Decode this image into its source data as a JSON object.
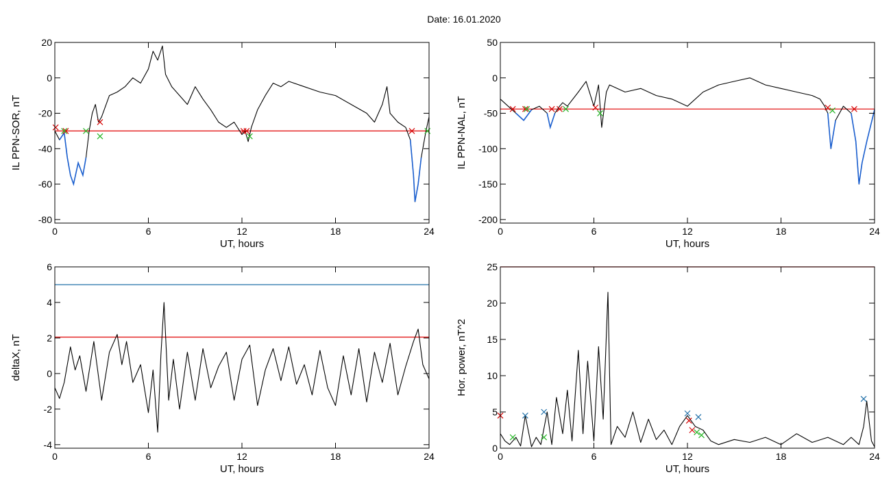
{
  "figure": {
    "title": "Date:  16.01.2020"
  },
  "chart_data": [
    {
      "type": "line",
      "xlabel": "UT, hours",
      "ylabel": "IL PPN-SOR, nT",
      "xlim": [
        0,
        24
      ],
      "ylim": [
        -82,
        20
      ],
      "xticks": [
        0,
        6,
        12,
        18,
        24
      ],
      "yticks": [
        -80,
        -60,
        -40,
        -20,
        0,
        20
      ],
      "threshold": {
        "value": -30,
        "color": "#e00000"
      },
      "x": [
        0,
        0.3,
        0.6,
        0.8,
        1.0,
        1.2,
        1.5,
        1.8,
        2.0,
        2.2,
        2.4,
        2.6,
        2.8,
        3.0,
        3.5,
        4.0,
        4.5,
        5.0,
        5.5,
        6.0,
        6.3,
        6.6,
        6.9,
        7.1,
        7.5,
        8.0,
        8.5,
        9.0,
        9.5,
        10.0,
        10.5,
        11.0,
        11.5,
        12.0,
        12.2,
        12.4,
        12.6,
        13.0,
        13.5,
        14.0,
        14.5,
        15.0,
        16.0,
        17.0,
        18.0,
        19.0,
        20.0,
        20.5,
        21.0,
        21.3,
        21.5,
        22.0,
        22.5,
        22.8,
        23.0,
        23.1,
        23.3,
        23.5,
        23.8,
        24.0
      ],
      "y": [
        -30,
        -35,
        -31,
        -45,
        -55,
        -60,
        -48,
        -55,
        -45,
        -30,
        -20,
        -15,
        -25,
        -22,
        -10,
        -8,
        -5,
        0,
        -3,
        5,
        15,
        10,
        18,
        2,
        -5,
        -10,
        -15,
        -5,
        -12,
        -18,
        -25,
        -28,
        -25,
        -32,
        -30,
        -36,
        -28,
        -18,
        -10,
        -3,
        -5,
        -2,
        -5,
        -8,
        -10,
        -15,
        -20,
        -25,
        -15,
        -5,
        -20,
        -25,
        -28,
        -35,
        -55,
        -70,
        -60,
        -45,
        -30,
        -22
      ],
      "markers_red": [
        [
          0.05,
          -28
        ],
        [
          0.7,
          -30
        ],
        [
          2.9,
          -25
        ],
        [
          12.1,
          -30
        ],
        [
          12.3,
          -30
        ],
        [
          22.9,
          -30
        ]
      ],
      "markers_green": [
        [
          0.6,
          -30
        ],
        [
          2.0,
          -30
        ],
        [
          2.9,
          -33
        ],
        [
          12.5,
          -33
        ],
        [
          23.9,
          -30
        ]
      ]
    },
    {
      "type": "line",
      "xlabel": "UT, hours",
      "ylabel": "IL PPN-NAL, nT",
      "xlim": [
        0,
        24
      ],
      "ylim": [
        -205,
        50
      ],
      "xticks": [
        0,
        6,
        12,
        18,
        24
      ],
      "yticks": [
        -200,
        -150,
        -100,
        -50,
        0,
        50
      ],
      "threshold": {
        "value": -44,
        "color": "#e00000"
      },
      "x": [
        0,
        0.5,
        1.0,
        1.5,
        2.0,
        2.5,
        3.0,
        3.2,
        3.5,
        3.8,
        4.0,
        4.3,
        5.0,
        5.5,
        6.0,
        6.3,
        6.5,
        6.8,
        7.0,
        8.0,
        9.0,
        10.0,
        11.0,
        12.0,
        13.0,
        14.0,
        15.0,
        16.0,
        17.0,
        18.0,
        19.0,
        20.0,
        20.5,
        20.8,
        21.0,
        21.2,
        21.5,
        22.0,
        22.5,
        22.8,
        23.0,
        23.2,
        23.5,
        24.0
      ],
      "y": [
        -30,
        -40,
        -50,
        -60,
        -45,
        -40,
        -50,
        -70,
        -50,
        -40,
        -35,
        -40,
        -20,
        -5,
        -40,
        -10,
        -70,
        -20,
        -10,
        -20,
        -15,
        -25,
        -30,
        -40,
        -20,
        -10,
        -5,
        0,
        -10,
        -15,
        -20,
        -25,
        -30,
        -40,
        -50,
        -100,
        -60,
        -40,
        -50,
        -90,
        -150,
        -120,
        -90,
        -45
      ],
      "markers_red": [
        [
          0.8,
          -44
        ],
        [
          1.6,
          -44
        ],
        [
          3.3,
          -44
        ],
        [
          3.8,
          -44
        ],
        [
          6.1,
          -42
        ],
        [
          21.0,
          -42
        ],
        [
          22.7,
          -44
        ]
      ],
      "markers_green": [
        [
          1.7,
          -44
        ],
        [
          4.2,
          -44
        ],
        [
          6.4,
          -50
        ],
        [
          21.3,
          -46
        ]
      ]
    },
    {
      "type": "line",
      "xlabel": "UT, hours",
      "ylabel": "deltaX, nT",
      "xlim": [
        0,
        24
      ],
      "ylim": [
        -4.2,
        6
      ],
      "xticks": [
        0,
        6,
        12,
        18,
        24
      ],
      "yticks": [
        -4,
        -2,
        0,
        2,
        4,
        6
      ],
      "threshold": {
        "value": 2.05,
        "color": "#e00000"
      },
      "threshold2": {
        "value": 5.0,
        "color": "#1f6fa8"
      },
      "x": [
        0,
        0.3,
        0.6,
        1.0,
        1.3,
        1.6,
        2.0,
        2.5,
        3.0,
        3.5,
        4.0,
        4.3,
        4.6,
        5.0,
        5.5,
        6.0,
        6.3,
        6.6,
        6.8,
        7.0,
        7.3,
        7.6,
        8.0,
        8.5,
        9.0,
        9.5,
        10.0,
        10.5,
        11.0,
        11.5,
        12.0,
        12.5,
        13.0,
        13.5,
        14.0,
        14.5,
        15.0,
        15.5,
        16.0,
        16.5,
        17.0,
        17.5,
        18.0,
        18.5,
        19.0,
        19.5,
        20.0,
        20.5,
        21.0,
        21.5,
        22.0,
        22.5,
        23.0,
        23.3,
        23.6,
        24.0
      ],
      "y": [
        -0.8,
        -1.4,
        -0.5,
        1.5,
        0.2,
        1.0,
        -1.0,
        1.8,
        -1.5,
        1.2,
        2.2,
        0.5,
        1.8,
        -0.5,
        0.5,
        -2.2,
        0.2,
        -3.3,
        1.0,
        4.0,
        -1.5,
        0.8,
        -2.0,
        1.2,
        -1.5,
        1.4,
        -0.8,
        0.4,
        1.2,
        -1.5,
        0.8,
        1.6,
        -1.8,
        0.2,
        1.4,
        -0.4,
        1.5,
        -0.6,
        0.5,
        -1.2,
        1.3,
        -0.8,
        -1.8,
        1.0,
        -1.2,
        1.4,
        -1.6,
        1.2,
        -0.5,
        1.7,
        -1.2,
        0.4,
        1.8,
        2.5,
        0.5,
        -0.3
      ]
    },
    {
      "type": "line",
      "xlabel": "UT, hours",
      "ylabel": "Hor. power, nT^2",
      "xlim": [
        0,
        24
      ],
      "ylim": [
        0,
        25
      ],
      "xticks": [
        0,
        6,
        12,
        18,
        24
      ],
      "yticks": [
        0,
        5,
        10,
        15,
        20,
        25
      ],
      "threshold": {
        "value": 25,
        "color": "#e00000"
      },
      "x": [
        0,
        0.3,
        0.6,
        1.0,
        1.3,
        1.6,
        2.0,
        2.3,
        2.6,
        3.0,
        3.3,
        3.6,
        4.0,
        4.3,
        4.6,
        5.0,
        5.3,
        5.6,
        6.0,
        6.3,
        6.6,
        6.9,
        7.1,
        7.5,
        8.0,
        8.5,
        9.0,
        9.5,
        10.0,
        10.5,
        11.0,
        11.5,
        12.0,
        12.5,
        13.0,
        13.5,
        14.0,
        15.0,
        16.0,
        17.0,
        18.0,
        19.0,
        20.0,
        21.0,
        22.0,
        22.5,
        23.0,
        23.3,
        23.5,
        23.8,
        24.0
      ],
      "y": [
        2,
        1,
        0.5,
        1.5,
        0.3,
        4.5,
        0.2,
        1.5,
        0.5,
        5,
        0.5,
        7,
        2,
        8,
        1,
        13.5,
        2,
        12,
        1,
        14,
        4,
        21.5,
        0.5,
        3,
        1.5,
        5,
        0.8,
        4,
        1.2,
        2.5,
        0.5,
        3,
        4.5,
        3,
        2.5,
        1,
        0.5,
        1.2,
        0.8,
        1.5,
        0.5,
        2,
        0.8,
        1.5,
        0.5,
        1.5,
        0.5,
        3,
        6.5,
        1,
        0.2
      ],
      "markers_blue": [
        [
          1.6,
          4.5
        ],
        [
          2.8,
          5
        ],
        [
          12.0,
          4.8
        ],
        [
          12.7,
          4.3
        ],
        [
          23.3,
          6.8
        ]
      ],
      "markers_red": [
        [
          0,
          4.5
        ],
        [
          12.1,
          3.8
        ],
        [
          12.3,
          2.5
        ]
      ],
      "markers_green": [
        [
          0.8,
          1.5
        ],
        [
          2.8,
          1.5
        ],
        [
          12.6,
          2.2
        ],
        [
          12.9,
          1.8
        ]
      ]
    }
  ]
}
